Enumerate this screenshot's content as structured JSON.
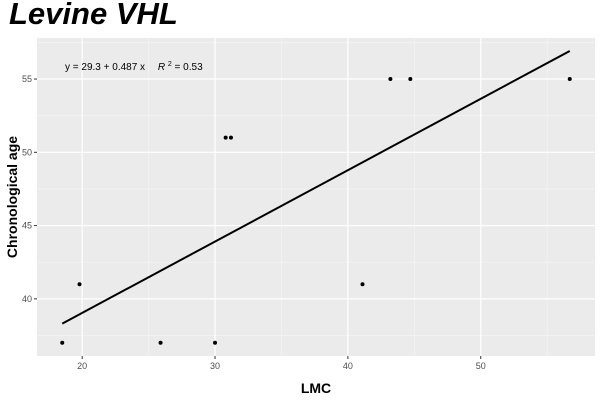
{
  "chart_data": {
    "type": "scatter",
    "title": "Levine VHL",
    "xlabel": "LMC",
    "ylabel": "Chronological age",
    "xlim": [
      16.6,
      58.6
    ],
    "ylim": [
      36.1,
      57.8
    ],
    "x_ticks": [
      20,
      30,
      40,
      50
    ],
    "y_ticks": [
      40,
      45,
      50,
      55
    ],
    "grid": true,
    "points": [
      {
        "x": 18.5,
        "y": 37
      },
      {
        "x": 19.8,
        "y": 41
      },
      {
        "x": 25.9,
        "y": 37
      },
      {
        "x": 30.0,
        "y": 37
      },
      {
        "x": 30.8,
        "y": 51
      },
      {
        "x": 31.2,
        "y": 51
      },
      {
        "x": 41.1,
        "y": 41
      },
      {
        "x": 43.2,
        "y": 55
      },
      {
        "x": 44.7,
        "y": 55
      },
      {
        "x": 56.7,
        "y": 55
      }
    ],
    "regression": {
      "intercept": 29.3,
      "slope": 0.487,
      "r2": 0.53,
      "x_range": [
        18.5,
        56.7
      ]
    },
    "annotation": {
      "equation": "y = 29.3 + 0.487 x",
      "r2_label": "R",
      "r2_sup": "2",
      "r2_value": " = 0.53"
    }
  }
}
